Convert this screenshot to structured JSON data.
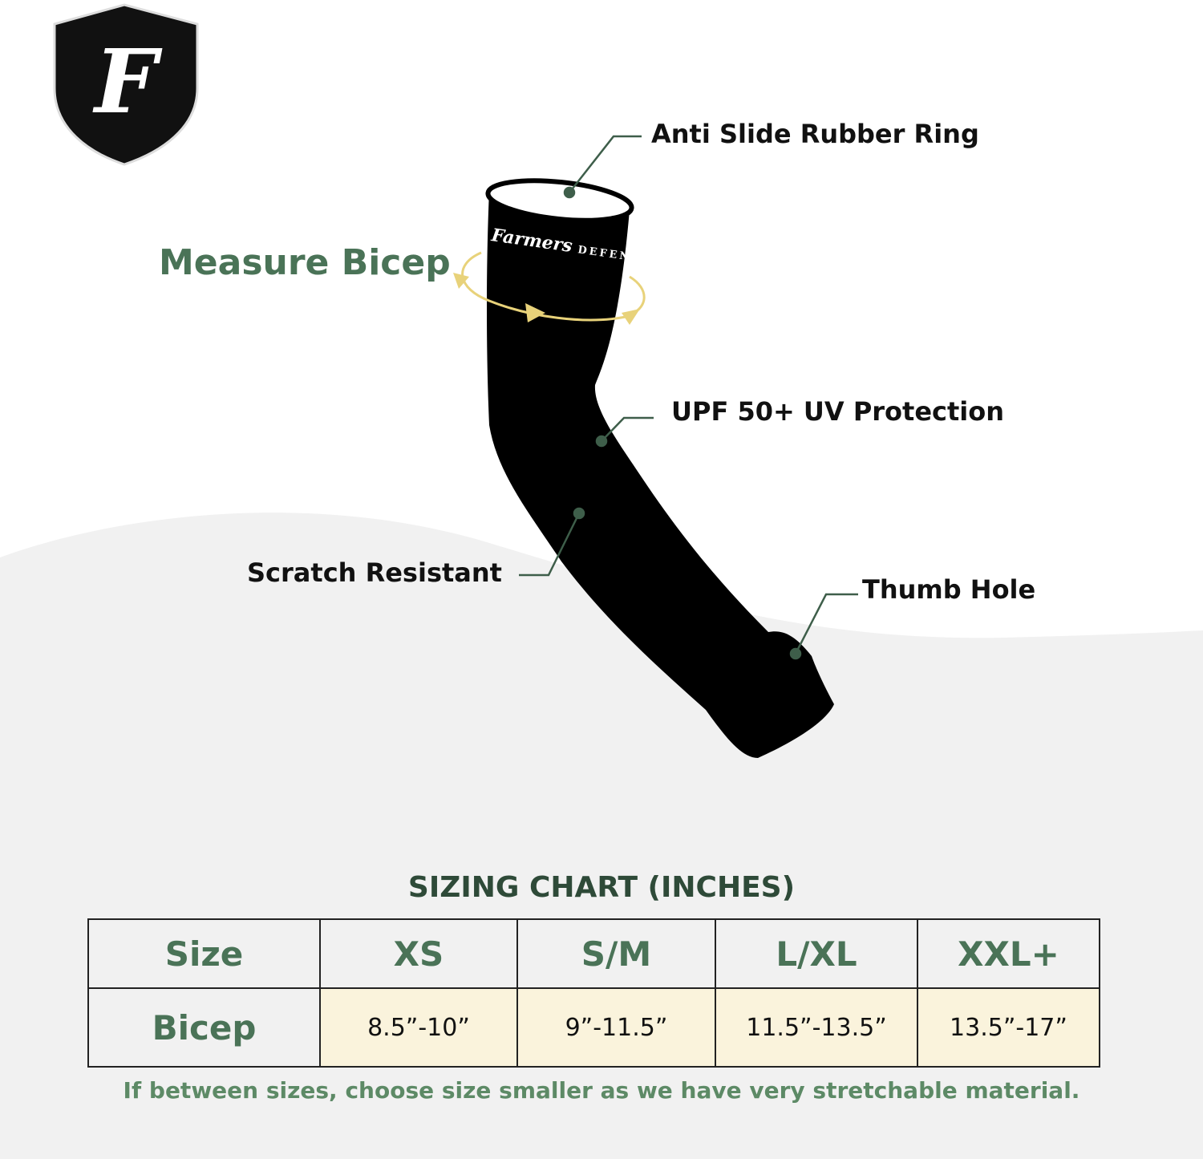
{
  "logo": {
    "letter": "F",
    "brand": "Farmers DEFENSE"
  },
  "labels": {
    "measure": "Measure Bicep",
    "anti_slide": "Anti Slide Rubber Ring",
    "upf": "UPF 50+ UV Protection",
    "scratch": "Scratch Resistant",
    "thumb": "Thumb Hole"
  },
  "sizing": {
    "title": "SIZING CHART (INCHES)",
    "header_label": "Size",
    "sizes": [
      "XS",
      "S/M",
      "L/XL",
      "XXL+"
    ],
    "row_label": "Bicep",
    "bicep": [
      "8.5”-10”",
      "9”-11.5”",
      "11.5”-13.5”",
      "13.5”-17”"
    ],
    "note": "If between sizes, choose size smaller as we have very stretchable material."
  },
  "colors": {
    "green": "#4a7357",
    "callout": "#3e5e4a",
    "arrow": "#e8d27a",
    "cell": "#faf3dc",
    "background": "#f1f1f1"
  }
}
